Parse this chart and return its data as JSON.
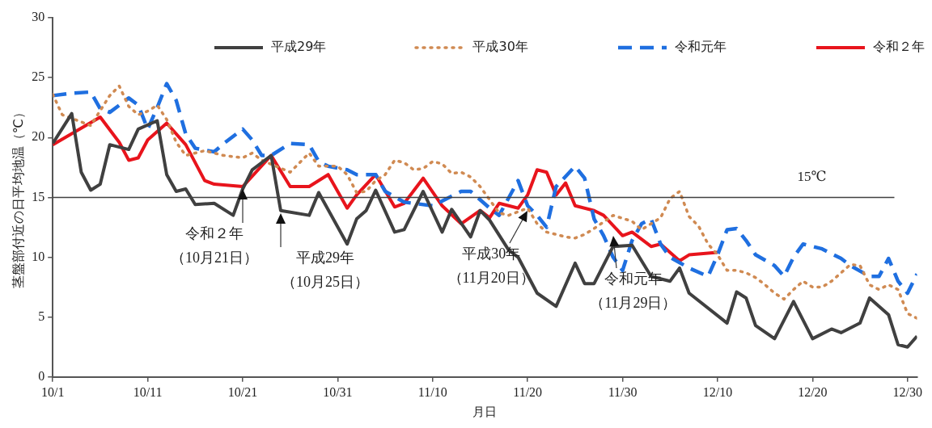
{
  "chart_data": {
    "type": "line",
    "xlabel": "月日",
    "ylabel": "茎盤部付近の日平均地温（℃）",
    "xlim": [
      "--10-01",
      "--12-31"
    ],
    "xticks": [
      {
        "value": "--10-01",
        "label": "10/1"
      },
      {
        "value": "--10-11",
        "label": "10/11"
      },
      {
        "value": "--10-21",
        "label": "10/21"
      },
      {
        "value": "--10-31",
        "label": "10/31"
      },
      {
        "value": "--11-10",
        "label": "11/10"
      },
      {
        "value": "--11-20",
        "label": "11/20"
      },
      {
        "value": "--11-30",
        "label": "11/30"
      },
      {
        "value": "--12-10",
        "label": "12/10"
      },
      {
        "value": "--12-20",
        "label": "12/20"
      },
      {
        "value": "--12-30",
        "label": "12/30"
      }
    ],
    "ylim": [
      0,
      30
    ],
    "yticks": [
      0,
      5,
      10,
      15,
      20,
      25,
      30
    ],
    "grid": false,
    "legend": "top",
    "marker": "none",
    "ref_lines": [
      {
        "axis": "y",
        "value": 15,
        "label": "15℃",
        "color": "#404040"
      }
    ],
    "annotations": [
      {
        "text": "令和２年（10月21日）",
        "x": "--10-21",
        "y": 15.9
      },
      {
        "text": "平成29年（10月25日）",
        "x": "--10-25",
        "y": 13.9
      },
      {
        "text": "平成30年（11月20日）",
        "x": "--11-20",
        "y": 14.1
      },
      {
        "text": "令和元年（11月29日）",
        "x": "--11-29",
        "y": 12.0
      }
    ],
    "series": [
      {
        "name": "平成29年",
        "color": "#404040",
        "line_style": "solid",
        "x": [
          "--10-01",
          "--10-03",
          "--10-04",
          "--10-05",
          "--10-06",
          "--10-07",
          "--10-09",
          "--10-10",
          "--10-12",
          "--10-13",
          "--10-14",
          "--10-15",
          "--10-16",
          "--10-18",
          "--10-20",
          "--10-21",
          "--10-22",
          "--10-24",
          "--10-25",
          "--10-28",
          "--10-29",
          "--11-01",
          "--11-02",
          "--11-03",
          "--11-04",
          "--11-06",
          "--11-07",
          "--11-09",
          "--11-11",
          "--11-12",
          "--11-14",
          "--11-15",
          "--11-16",
          "--11-18",
          "--11-19",
          "--11-21",
          "--11-23",
          "--11-25",
          "--11-26",
          "--11-27",
          "--11-29",
          "--12-01",
          "--12-03",
          "--12-05",
          "--12-06",
          "--12-07",
          "--12-11",
          "--12-12",
          "--12-13",
          "--12-14",
          "--12-16",
          "--12-18",
          "--12-20",
          "--12-22",
          "--12-23",
          "--12-25",
          "--12-26",
          "--12-28",
          "--12-29",
          "--12-30",
          "--12-31"
        ],
        "values": [
          19.5,
          22.0,
          17.1,
          15.6,
          16.1,
          19.4,
          19.0,
          20.7,
          21.4,
          16.9,
          15.5,
          15.7,
          14.4,
          14.5,
          13.5,
          15.7,
          17.3,
          18.5,
          13.9,
          13.5,
          15.4,
          11.1,
          13.2,
          13.9,
          15.6,
          12.1,
          12.3,
          15.5,
          12.1,
          14.0,
          11.7,
          13.9,
          13.1,
          10.6,
          10.0,
          7.0,
          5.9,
          9.5,
          7.8,
          7.8,
          10.9,
          11.0,
          8.4,
          8.0,
          9.1,
          7.0,
          4.5,
          7.1,
          6.6,
          4.3,
          3.2,
          6.3,
          3.2,
          4.0,
          3.7,
          4.5,
          6.6,
          5.2,
          2.7,
          2.5,
          3.4
        ]
      },
      {
        "name": "平成30年",
        "color": "#d08a52",
        "line_style": "dotted",
        "x": [
          "--10-01",
          "--10-02",
          "--10-05",
          "--10-07",
          "--10-08",
          "--10-09",
          "--10-10",
          "--10-11",
          "--10-12",
          "--10-13",
          "--10-14",
          "--10-15",
          "--10-17",
          "--10-19",
          "--10-21",
          "--10-22",
          "--10-23",
          "--10-26",
          "--10-28",
          "--10-29",
          "--10-31",
          "--11-01",
          "--11-02",
          "--11-03",
          "--11-04",
          "--11-05",
          "--11-06",
          "--11-07",
          "--11-08",
          "--11-09",
          "--11-10",
          "--11-11",
          "--11-12",
          "--11-13",
          "--11-14",
          "--11-15",
          "--11-16",
          "--11-17",
          "--11-18",
          "--11-20",
          "--11-21",
          "--11-22",
          "--11-24",
          "--11-25",
          "--11-26",
          "--11-27",
          "--11-29",
          "--12-01",
          "--12-02",
          "--12-03",
          "--12-04",
          "--12-05",
          "--12-06",
          "--12-07",
          "--12-08",
          "--12-09",
          "--12-10",
          "--12-11",
          "--12-12",
          "--12-13",
          "--12-14",
          "--12-15",
          "--12-16",
          "--12-17",
          "--12-18",
          "--12-19",
          "--12-20",
          "--12-21",
          "--12-22",
          "--12-23",
          "--12-24",
          "--12-25",
          "--12-26",
          "--12-27",
          "--12-28",
          "--12-29",
          "--12-30",
          "--12-31"
        ],
        "values": [
          23.6,
          21.9,
          21.0,
          23.5,
          24.3,
          22.6,
          21.9,
          22.2,
          22.7,
          21.5,
          19.6,
          18.5,
          18.9,
          18.5,
          18.3,
          18.7,
          18.1,
          17.1,
          18.7,
          17.6,
          17.6,
          16.9,
          15.4,
          15.5,
          16.4,
          16.9,
          18.1,
          17.9,
          17.3,
          17.4,
          18.0,
          17.8,
          17.0,
          17.1,
          16.7,
          15.9,
          14.8,
          13.7,
          13.5,
          14.1,
          12.8,
          12.1,
          11.7,
          11.6,
          11.9,
          12.4,
          13.5,
          13.0,
          12.3,
          12.8,
          13.3,
          14.9,
          15.5,
          13.4,
          12.6,
          11.1,
          10.2,
          8.9,
          8.9,
          8.7,
          8.3,
          7.7,
          7.0,
          6.5,
          7.3,
          8.0,
          7.5,
          7.5,
          8.0,
          8.7,
          9.4,
          9.3,
          7.7,
          7.3,
          7.7,
          7.3,
          5.3,
          4.9
        ]
      },
      {
        "name": "令和元年",
        "color": "#1f6fe0",
        "line_style": "dashed",
        "x": [
          "--10-01",
          "--10-03",
          "--10-05",
          "--10-06",
          "--10-07",
          "--10-09",
          "--10-10",
          "--10-11",
          "--10-12",
          "--10-13",
          "--10-14",
          "--10-15",
          "--10-16",
          "--10-18",
          "--10-19",
          "--10-21",
          "--10-22",
          "--10-23",
          "--10-24",
          "--10-26",
          "--10-28",
          "--10-29",
          "--10-30",
          "--11-01",
          "--11-02",
          "--11-04",
          "--11-05",
          "--11-07",
          "--11-10",
          "--11-13",
          "--11-14",
          "--11-16",
          "--11-17",
          "--11-19",
          "--11-20",
          "--11-21",
          "--11-22",
          "--11-23",
          "--11-25",
          "--11-26",
          "--11-27",
          "--11-28",
          "--11-29",
          "--11-30",
          "--12-01",
          "--12-02",
          "--12-03",
          "--12-04",
          "--12-05",
          "--12-07",
          "--12-09",
          "--12-10",
          "--12-11",
          "--12-12",
          "--12-13",
          "--12-14",
          "--12-16",
          "--12-17",
          "--12-18",
          "--12-19",
          "--12-21",
          "--12-23",
          "--12-24",
          "--12-26",
          "--12-27",
          "--12-28",
          "--12-29",
          "--12-30",
          "--12-31"
        ],
        "values": [
          23.5,
          23.7,
          23.8,
          22.4,
          22.1,
          23.3,
          22.7,
          20.7,
          22.5,
          24.5,
          23.1,
          20.3,
          19.1,
          18.8,
          19.5,
          20.7,
          19.8,
          18.5,
          18.5,
          19.5,
          19.4,
          18.0,
          17.6,
          17.3,
          16.9,
          16.9,
          15.5,
          14.6,
          14.3,
          15.5,
          15.5,
          14.1,
          13.5,
          16.4,
          14.3,
          13.5,
          12.5,
          15.9,
          17.6,
          16.6,
          13.2,
          11.8,
          10.0,
          8.9,
          11.4,
          12.8,
          13.2,
          11.1,
          10.0,
          9.1,
          8.4,
          10.2,
          12.3,
          12.4,
          11.4,
          10.2,
          9.3,
          8.4,
          10.0,
          11.1,
          10.7,
          9.9,
          9.3,
          8.4,
          8.4,
          9.9,
          8.0,
          7.0,
          8.6
        ]
      },
      {
        "name": "令和２年",
        "color": "#e8141c",
        "line_style": "solid",
        "x": [
          "--10-01",
          "--10-06",
          "--10-08",
          "--10-09",
          "--10-10",
          "--10-11",
          "--10-13",
          "--10-15",
          "--10-17",
          "--10-18",
          "--10-21",
          "--10-24",
          "--10-26",
          "--10-28",
          "--10-30",
          "--11-01",
          "--11-02",
          "--11-04",
          "--11-06",
          "--11-07",
          "--11-09",
          "--11-11",
          "--11-13",
          "--11-15",
          "--11-16",
          "--11-17",
          "--11-19",
          "--11-20",
          "--11-21",
          "--11-22",
          "--11-23",
          "--11-24",
          "--11-25",
          "--11-27",
          "--11-28",
          "--11-30",
          "--12-01",
          "--12-03",
          "--12-04",
          "--12-06",
          "--12-07",
          "--12-10"
        ],
        "values": [
          19.4,
          21.7,
          19.6,
          18.1,
          18.3,
          19.8,
          21.2,
          19.4,
          16.4,
          16.1,
          15.9,
          18.5,
          15.9,
          15.9,
          16.9,
          14.1,
          15.2,
          16.9,
          14.2,
          14.5,
          16.6,
          14.3,
          12.8,
          13.9,
          13.3,
          14.5,
          14.1,
          15.2,
          17.3,
          17.1,
          15.2,
          16.2,
          14.3,
          13.9,
          13.5,
          11.8,
          12.1,
          10.9,
          11.1,
          9.7,
          10.2,
          10.4
        ]
      }
    ]
  }
}
